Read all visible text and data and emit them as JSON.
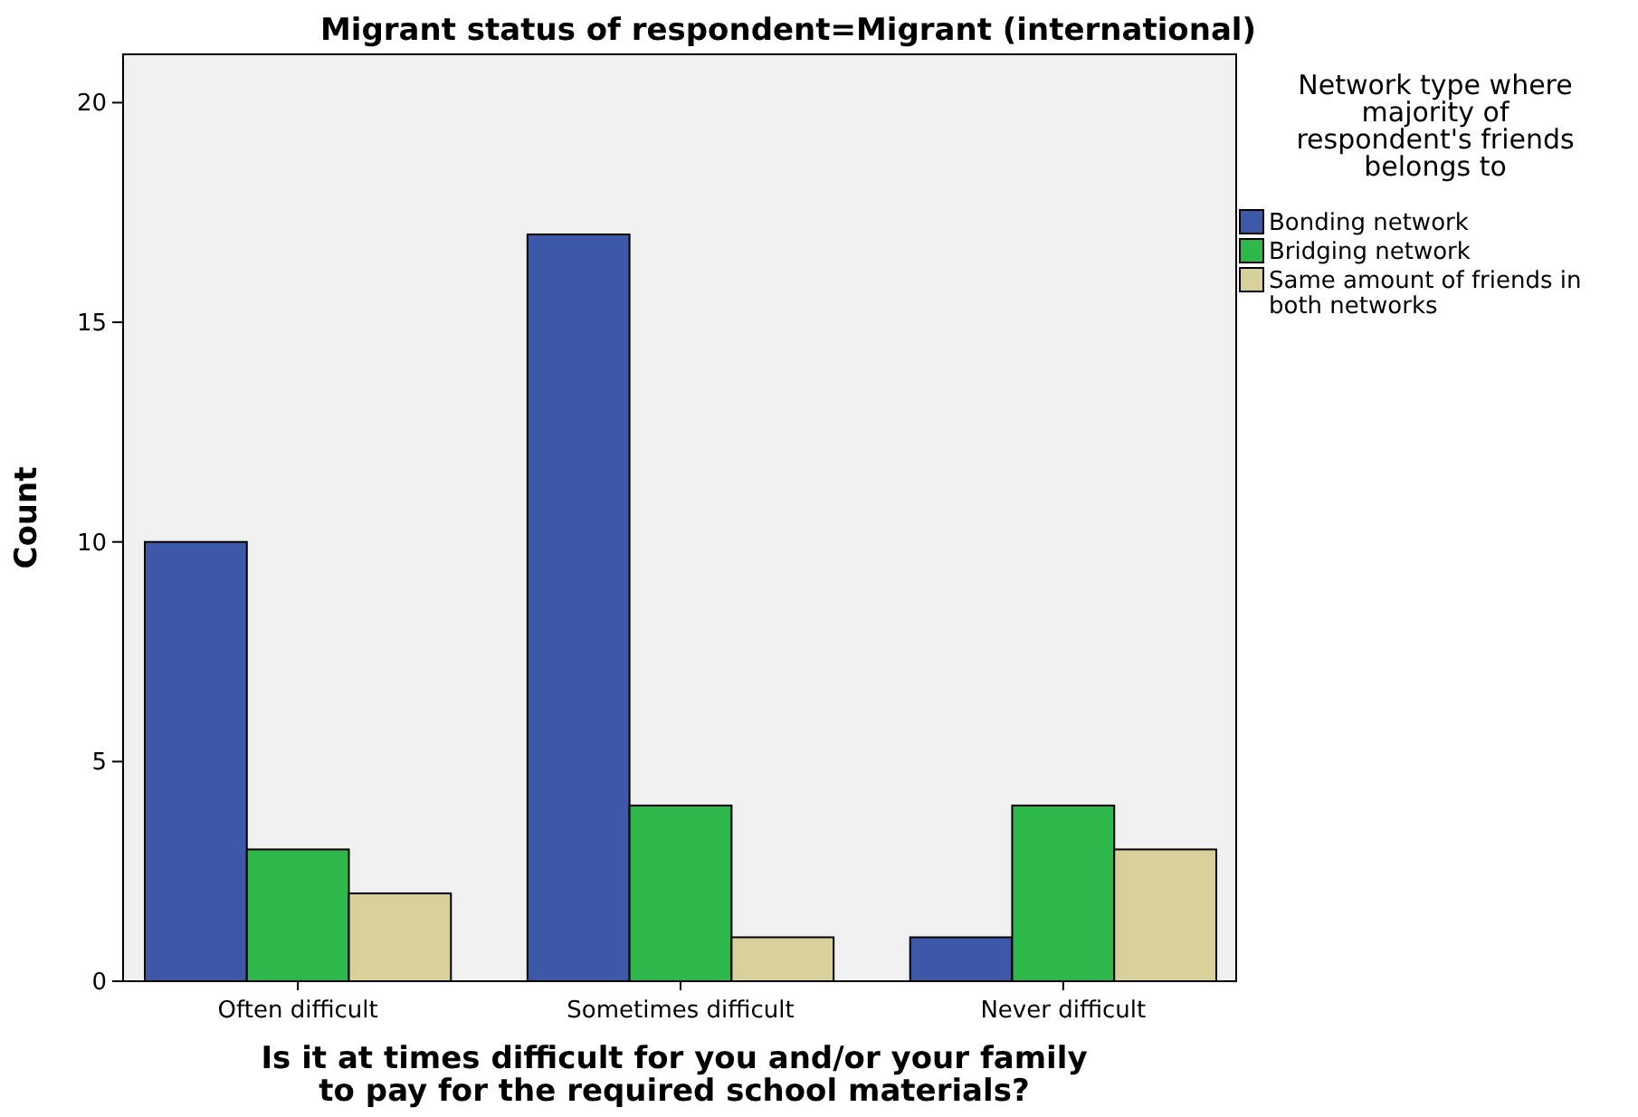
{
  "chart_data": {
    "type": "bar",
    "title": "Migrant status of respondent=Migrant (international)",
    "xlabel": "Is it at times difficult for you and/or your family to pay for the required school materials?",
    "ylabel": "Count",
    "legend_title": "Network type where majority of respondent's friends belongs to",
    "categories": [
      "Often difficult",
      "Sometimes difficult",
      "Never difficult"
    ],
    "series": [
      {
        "name": "Bonding network",
        "color": "#3d58a9",
        "values": [
          10,
          17,
          1
        ]
      },
      {
        "name": "Bridging network",
        "color": "#2eb84b",
        "values": [
          3,
          4,
          4
        ]
      },
      {
        "name": "Same amount of friends in both networks",
        "color": "#d8d09b",
        "values": [
          2,
          1,
          3
        ]
      }
    ],
    "ylim": [
      0,
      21.1
    ],
    "yticks": [
      0,
      5,
      10,
      15,
      20
    ],
    "grid": false,
    "legend": "right"
  }
}
